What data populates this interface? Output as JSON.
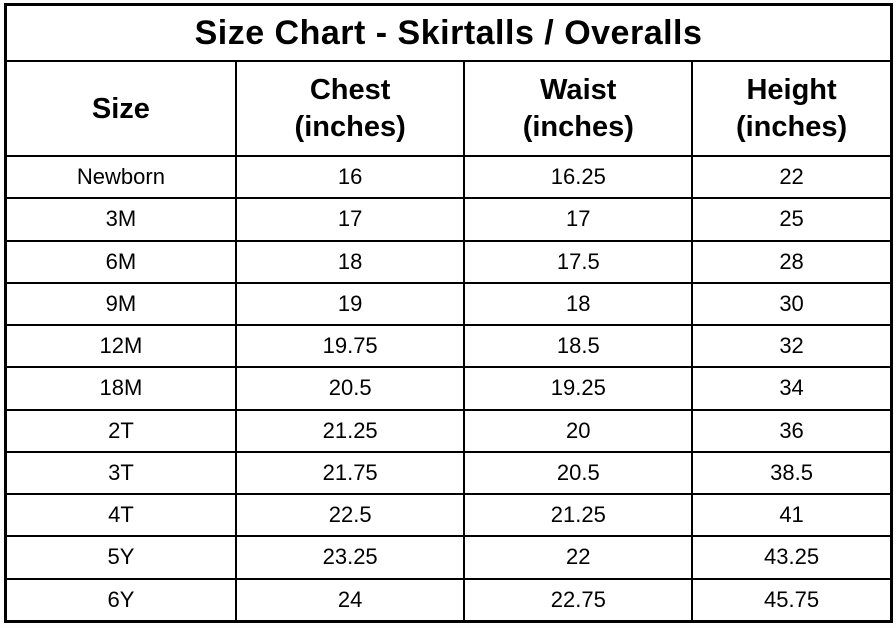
{
  "chart_data": {
    "type": "table",
    "title": "Size Chart - Skirtalls / Overalls",
    "columns": [
      "Size",
      "Chest (inches)",
      "Waist (inches)",
      "Height (inches)"
    ],
    "rows": [
      {
        "size": "Newborn",
        "chest": "16",
        "waist": "16.25",
        "height": "22"
      },
      {
        "size": "3M",
        "chest": "17",
        "waist": "17",
        "height": "25"
      },
      {
        "size": "6M",
        "chest": "18",
        "waist": "17.5",
        "height": "28"
      },
      {
        "size": "9M",
        "chest": "19",
        "waist": "18",
        "height": "30"
      },
      {
        "size": "12M",
        "chest": "19.75",
        "waist": "18.5",
        "height": "32"
      },
      {
        "size": "18M",
        "chest": "20.5",
        "waist": "19.25",
        "height": "34"
      },
      {
        "size": "2T",
        "chest": "21.25",
        "waist": "20",
        "height": "36"
      },
      {
        "size": "3T",
        "chest": "21.75",
        "waist": "20.5",
        "height": "38.5"
      },
      {
        "size": "4T",
        "chest": "22.5",
        "waist": "21.25",
        "height": "41"
      },
      {
        "size": "5Y",
        "chest": "23.25",
        "waist": "22",
        "height": "43.25"
      },
      {
        "size": "6Y",
        "chest": "24",
        "waist": "22.75",
        "height": "45.75"
      }
    ],
    "layout": {
      "grid": "on",
      "border_color": "#000000",
      "background_color": "#ffffff",
      "text_color": "#000000"
    }
  },
  "header_display": {
    "size": "Size",
    "chest": "Chest\n(inches)",
    "waist": "Waist\n(inches)",
    "height": "Height\n(inches)"
  }
}
